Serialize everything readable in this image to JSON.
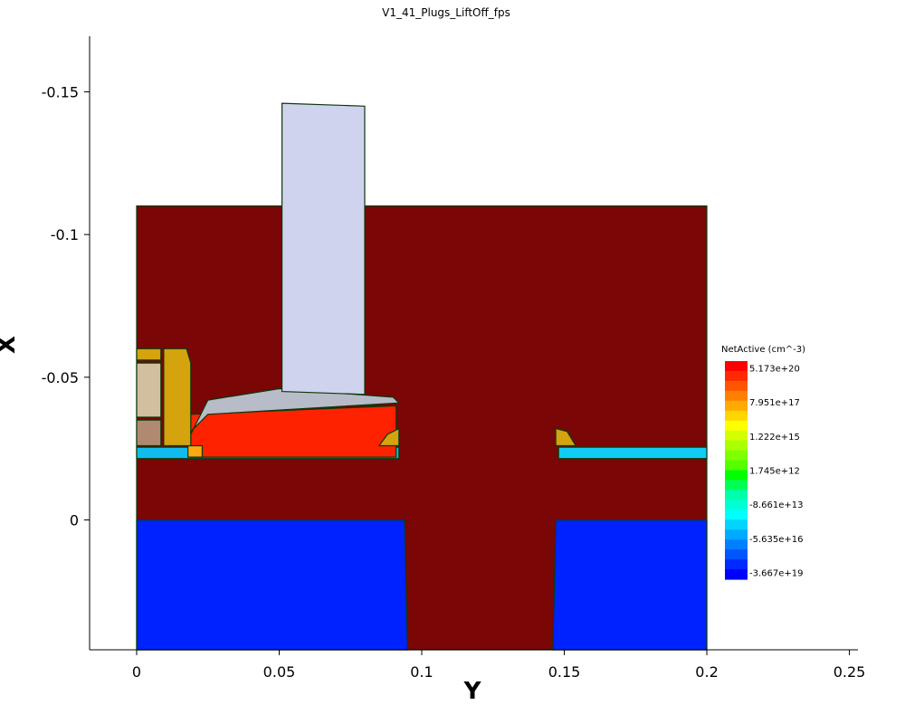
{
  "chart_data": {
    "type": "contour",
    "title": "V1_41_Plugs_LiftOff_fps",
    "xlabel": "Y",
    "ylabel": "X",
    "x_axis": {
      "lim": [
        -0.0165,
        0.253
      ],
      "ticks": [
        0,
        0.05,
        0.1,
        0.15,
        0.2,
        0.25
      ],
      "tick_labels": [
        "0",
        "0.05",
        "0.1",
        "0.15",
        "0.2",
        "0.25"
      ]
    },
    "y_axis": {
      "lim": [
        -0.1695,
        0.0455
      ],
      "inverted": true,
      "ticks": [
        -0.15,
        -0.1,
        -0.05,
        0
      ],
      "tick_labels": [
        "-0.15",
        "-0.1",
        "-0.05",
        "0"
      ]
    },
    "grid": false,
    "colorbar": {
      "title": "NetActive (cm^-3)",
      "labels": [
        "5.173e+20",
        "7.951e+17",
        "1.222e+15",
        "1.745e+12",
        "-8.661e+13",
        "-5.635e+16",
        "-3.667e+19"
      ],
      "colors": [
        "#ff0000",
        "#ff2a00",
        "#ff5500",
        "#ff7f00",
        "#ffaa00",
        "#ffd400",
        "#ffff00",
        "#d4ff00",
        "#aaff00",
        "#7fff00",
        "#55ff00",
        "#00ff00",
        "#00ff55",
        "#00ffaa",
        "#00ffd4",
        "#00ffff",
        "#00d4ff",
        "#00aaff",
        "#0080ff",
        "#0055ff",
        "#002aff",
        "#0000ff"
      ]
    },
    "regions": [
      {
        "name": "Silicon body",
        "color": "#7a0606",
        "points": [
          [
            0,
            -0.11
          ],
          [
            0.2,
            -0.11
          ],
          [
            0.2,
            0.0455
          ],
          [
            0,
            0.0455
          ]
        ]
      },
      {
        "name": "Left well (n-type)",
        "color": "#0022ff",
        "points": [
          [
            0,
            0
          ],
          [
            0.094,
            0
          ],
          [
            0.095,
            0.0455
          ],
          [
            0,
            0.0455
          ]
        ]
      },
      {
        "name": "Right well (n-type)",
        "color": "#0022ff",
        "points": [
          [
            0.147,
            0
          ],
          [
            0.2,
            0
          ],
          [
            0.2,
            0.0455
          ],
          [
            0.146,
            0.0455
          ]
        ]
      },
      {
        "name": "Left shallow layer",
        "color": "#11bbee",
        "points": [
          [
            0,
            -0.0255
          ],
          [
            0.092,
            -0.0255
          ],
          [
            0.092,
            -0.0215
          ],
          [
            0,
            -0.0215
          ]
        ]
      },
      {
        "name": "Right shallow layer",
        "color": "#11ccf5",
        "points": [
          [
            0.148,
            -0.0255
          ],
          [
            0.2,
            -0.0255
          ],
          [
            0.2,
            -0.0215
          ],
          [
            0.148,
            -0.0215
          ]
        ]
      },
      {
        "name": "Doped source region",
        "color": "#ff2200",
        "points": [
          [
            0.019,
            -0.037
          ],
          [
            0.091,
            -0.04
          ],
          [
            0.091,
            -0.022
          ],
          [
            0.019,
            -0.022
          ]
        ]
      },
      {
        "name": "Source/drain tip",
        "color": "#ffaa11",
        "points": [
          [
            0.018,
            -0.026
          ],
          [
            0.023,
            -0.026
          ],
          [
            0.023,
            -0.022
          ],
          [
            0.018,
            -0.022
          ]
        ]
      },
      {
        "name": "Spacer left",
        "color": "#d4a30e",
        "points": [
          [
            0.0095,
            -0.06
          ],
          [
            0.0175,
            -0.06
          ],
          [
            0.019,
            -0.055
          ],
          [
            0.019,
            -0.026
          ],
          [
            0.0095,
            -0.026
          ]
        ]
      },
      {
        "name": "Spacer block",
        "color": "#d4a30e",
        "points": [
          [
            0,
            -0.06
          ],
          [
            0.0085,
            -0.06
          ],
          [
            0.0085,
            -0.056
          ],
          [
            0,
            -0.056
          ]
        ]
      },
      {
        "name": "Nitride block",
        "color": "#d1bfa0",
        "points": [
          [
            0,
            -0.055
          ],
          [
            0.0085,
            -0.055
          ],
          [
            0.0085,
            -0.036
          ],
          [
            0,
            -0.036
          ]
        ]
      },
      {
        "name": "Oxide block",
        "color": "#b08a70",
        "points": [
          [
            0,
            -0.035
          ],
          [
            0.0085,
            -0.035
          ],
          [
            0.0085,
            -0.026
          ],
          [
            0,
            -0.026
          ]
        ]
      },
      {
        "name": "Gate cap",
        "color": "#b8bcc8",
        "points": [
          [
            0.019,
            -0.03
          ],
          [
            0.025,
            -0.042
          ],
          [
            0.05,
            -0.046
          ],
          [
            0.09,
            -0.043
          ],
          [
            0.092,
            -0.041
          ],
          [
            0.025,
            -0.037
          ],
          [
            0.019,
            -0.031
          ]
        ]
      },
      {
        "name": "Plug",
        "color": "#d0d3ee",
        "points": [
          [
            0.051,
            -0.146
          ],
          [
            0.08,
            -0.145
          ],
          [
            0.08,
            -0.044
          ],
          [
            0.051,
            -0.045
          ]
        ]
      },
      {
        "name": "Right spacer",
        "color": "#d4a30e",
        "points": [
          [
            0.147,
            -0.032
          ],
          [
            0.151,
            -0.031
          ],
          [
            0.154,
            -0.026
          ],
          [
            0.147,
            -0.026
          ]
        ]
      },
      {
        "name": "Left spacer tip",
        "color": "#d4a30e",
        "points": [
          [
            0.092,
            -0.032
          ],
          [
            0.088,
            -0.03
          ],
          [
            0.085,
            -0.026
          ],
          [
            0.092,
            -0.026
          ]
        ]
      }
    ]
  }
}
